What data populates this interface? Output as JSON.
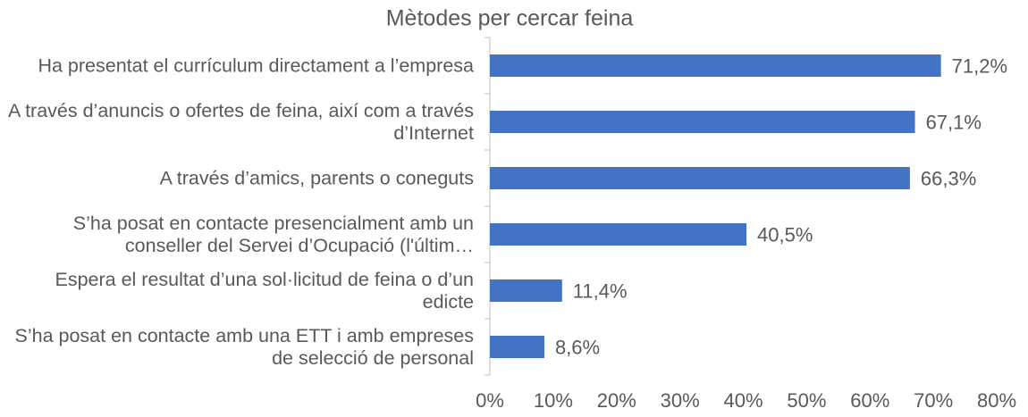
{
  "chart_data": {
    "type": "hbar",
    "title": "Mètodes per cercar feina",
    "categories": [
      "Ha presentat el currículum directament a l’empresa",
      "A través d’anuncis o ofertes de feina, així com a través d’Internet",
      "A través d’amics, parents o coneguts",
      "S’ha posat en contacte presencialment amb un conseller del Servei d’Ocupació (l'últim…",
      "Espera el resultat d’una sol·licitud de feina o d’un edicte",
      "S’ha posat en contacte amb una ETT i amb empreses de selecció de personal"
    ],
    "values": [
      71.2,
      67.1,
      66.3,
      40.5,
      11.4,
      8.6
    ],
    "value_labels": [
      "71,2%",
      "67,1%",
      "66,3%",
      "40,5%",
      "11,4%",
      "8,6%"
    ],
    "color": "#4472c4",
    "xlim": [
      0,
      80
    ],
    "xticks": [
      {
        "value": 0,
        "label": "0%"
      },
      {
        "value": 10,
        "label": "10%"
      },
      {
        "value": 20,
        "label": "20%"
      },
      {
        "value": 30,
        "label": "30%"
      },
      {
        "value": 40,
        "label": "40%"
      },
      {
        "value": 50,
        "label": "50%"
      },
      {
        "value": 60,
        "label": "60%"
      },
      {
        "value": 70,
        "label": "70%"
      },
      {
        "value": 80,
        "label": "80%"
      }
    ],
    "grid": false
  }
}
